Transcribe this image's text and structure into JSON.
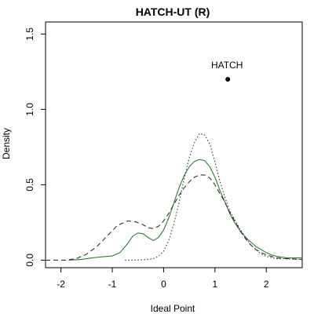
{
  "chart_data": {
    "type": "line",
    "title": "HATCH-UT (R)",
    "xlabel": "Ideal Point",
    "ylabel": "Density",
    "xlim": [
      -2.3,
      2.7
    ],
    "ylim": [
      -0.05,
      1.58
    ],
    "xticks": [
      -2,
      -1,
      0,
      1,
      2
    ],
    "xtick_labels": [
      "-2",
      "-1",
      "0",
      "1",
      "2"
    ],
    "yticks": [
      0.0,
      0.5,
      1.0,
      1.5
    ],
    "ytick_labels": [
      "0.0",
      "0.5",
      "1.0",
      "1.5"
    ],
    "grid": false,
    "colors": {
      "solid": "#2e7d32",
      "dashed": "#333333",
      "dotted": "#333333",
      "point": "#000000"
    },
    "series": [
      {
        "style": "solid",
        "x": [
          -1.85,
          -1.6,
          -1.4,
          -1.2,
          -1.0,
          -0.85,
          -0.7,
          -0.6,
          -0.5,
          -0.4,
          -0.3,
          -0.2,
          -0.1,
          0.0,
          0.1,
          0.2,
          0.3,
          0.4,
          0.5,
          0.6,
          0.7,
          0.8,
          0.9,
          1.0,
          1.1,
          1.2,
          1.3,
          1.4,
          1.5,
          1.6,
          1.7,
          1.8,
          1.9,
          2.0,
          2.1,
          2.2,
          2.4,
          2.7
        ],
        "y": [
          0.0,
          0.005,
          0.015,
          0.022,
          0.028,
          0.05,
          0.11,
          0.16,
          0.18,
          0.175,
          0.15,
          0.13,
          0.15,
          0.2,
          0.28,
          0.38,
          0.48,
          0.56,
          0.62,
          0.655,
          0.668,
          0.66,
          0.62,
          0.55,
          0.46,
          0.38,
          0.3,
          0.24,
          0.19,
          0.15,
          0.12,
          0.09,
          0.07,
          0.05,
          0.035,
          0.025,
          0.015,
          0.015
        ]
      },
      {
        "style": "dashed",
        "x": [
          -2.3,
          -1.9,
          -1.7,
          -1.5,
          -1.3,
          -1.1,
          -0.9,
          -0.7,
          -0.55,
          -0.4,
          -0.3,
          -0.2,
          -0.1,
          0.0,
          0.1,
          0.2,
          0.3,
          0.4,
          0.5,
          0.6,
          0.7,
          0.8,
          0.9,
          1.0,
          1.1,
          1.2,
          1.3,
          1.4,
          1.5,
          1.6,
          1.7,
          1.8,
          1.9,
          2.0,
          2.1,
          2.2,
          2.4,
          2.7
        ],
        "y": [
          0.0,
          0.0,
          0.01,
          0.04,
          0.09,
          0.16,
          0.23,
          0.26,
          0.255,
          0.235,
          0.215,
          0.21,
          0.225,
          0.26,
          0.31,
          0.37,
          0.43,
          0.48,
          0.52,
          0.55,
          0.565,
          0.565,
          0.545,
          0.5,
          0.44,
          0.38,
          0.31,
          0.25,
          0.19,
          0.14,
          0.1,
          0.07,
          0.05,
          0.035,
          0.025,
          0.015,
          0.01,
          0.005
        ]
      },
      {
        "style": "dotted",
        "x": [
          -0.75,
          -0.4,
          -0.2,
          -0.1,
          0.0,
          0.1,
          0.2,
          0.3,
          0.4,
          0.5,
          0.6,
          0.7,
          0.8,
          0.9,
          1.0,
          1.1,
          1.2,
          1.3,
          1.4,
          1.5,
          1.6,
          1.7,
          1.8,
          1.9,
          2.0,
          2.2,
          2.7
        ],
        "y": [
          0.0,
          0.002,
          0.01,
          0.025,
          0.06,
          0.13,
          0.24,
          0.38,
          0.54,
          0.68,
          0.78,
          0.84,
          0.83,
          0.77,
          0.65,
          0.52,
          0.41,
          0.32,
          0.26,
          0.2,
          0.15,
          0.1,
          0.07,
          0.04,
          0.025,
          0.01,
          0.005
        ]
      }
    ],
    "annotations": [
      {
        "label": "HATCH",
        "x": 1.25,
        "y": 1.2
      }
    ]
  }
}
